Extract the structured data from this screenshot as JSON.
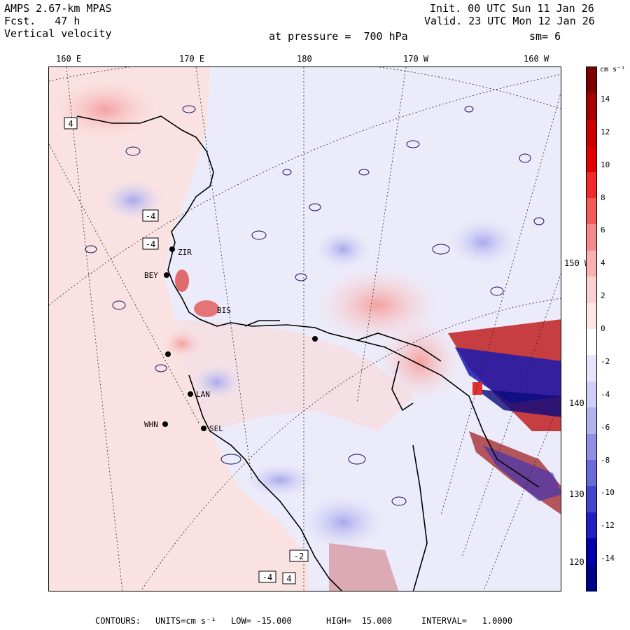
{
  "header": {
    "model": "AMPS 2.67-km MPAS",
    "forecast": "Fcst.   47 h",
    "field": "Vertical velocity",
    "init": "Init. 00 UTC Sun 11 Jan 26",
    "valid": "Valid. 23 UTC Mon 12 Jan 26",
    "pressure": "at pressure =  700 hPa",
    "smoothing": "sm= 6"
  },
  "longitude_labels": [
    "160 E",
    "170 E",
    "180",
    "170 W",
    "160 W"
  ],
  "latitude_labels": [
    "150 W",
    "140 W",
    "130 W",
    "120 W"
  ],
  "stations": [
    "ZIR",
    "BEY",
    "BIS",
    "LAN",
    "WHN",
    "SEL"
  ],
  "box_labels": [
    "4",
    "-4",
    "-4",
    "-2",
    "-4",
    "4"
  ],
  "colorbar": {
    "units": "cm s⁻¹",
    "ticks": [
      "14",
      "12",
      "10",
      "8",
      "6",
      "4",
      "2",
      "0",
      "-2",
      "-4",
      "-6",
      "-8",
      "-10",
      "-12",
      "-14"
    ],
    "colors": [
      "#7a0000",
      "#a40000",
      "#c80000",
      "#e00000",
      "#ee2a2a",
      "#f25a5a",
      "#f58a8a",
      "#f8b0b0",
      "#fbd2d2",
      "#fde6e6",
      "#ffffff",
      "#e6e6fb",
      "#cfcff5",
      "#b2b2ee",
      "#9090e4",
      "#6a6ad8",
      "#4545cc",
      "#2020c0",
      "#0000a8",
      "#000088"
    ]
  },
  "footer": {
    "contours": "CONTOURS:",
    "units": "UNITS=cm s⁻¹",
    "low": "LOW= -15.000",
    "high": "HIGH=  15.000",
    "interval": "INTERVAL=   1.0000"
  }
}
